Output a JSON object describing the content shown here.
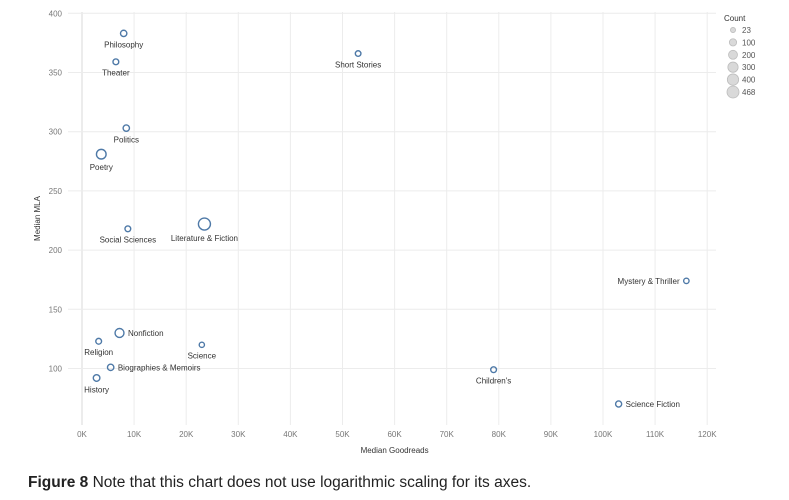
{
  "chart_data": {
    "type": "scatter",
    "title": "",
    "xlabel": "Median Goodreads",
    "ylabel": "Median MLA",
    "xlim": [
      0,
      120000
    ],
    "ylim": [
      50,
      400
    ],
    "x_ticks": [
      0,
      10000,
      20000,
      30000,
      40000,
      50000,
      60000,
      70000,
      80000,
      90000,
      100000,
      110000,
      120000
    ],
    "x_tick_labels": [
      "0K",
      "10K",
      "20K",
      "30K",
      "40K",
      "50K",
      "60K",
      "70K",
      "80K",
      "90K",
      "100K",
      "110K",
      "120K"
    ],
    "y_ticks": [
      100,
      150,
      200,
      250,
      300,
      350,
      400
    ],
    "y_tick_labels": [
      "100",
      "150",
      "200",
      "250",
      "300",
      "350",
      "400"
    ],
    "grid": true,
    "marker_color": "#4e79a7",
    "size_field": "Count",
    "points": [
      {
        "label": "Philosophy",
        "x": 8000,
        "y": 383,
        "count": 60,
        "label_pos": "below"
      },
      {
        "label": "Theater",
        "x": 6500,
        "y": 359,
        "count": 40,
        "label_pos": "below"
      },
      {
        "label": "Short Stories",
        "x": 53000,
        "y": 366,
        "count": 35,
        "label_pos": "below"
      },
      {
        "label": "Politics",
        "x": 8500,
        "y": 303,
        "count": 60,
        "label_pos": "below"
      },
      {
        "label": "Poetry",
        "x": 3700,
        "y": 281,
        "count": 250,
        "label_pos": "below"
      },
      {
        "label": "Social Sciences",
        "x": 8800,
        "y": 218,
        "count": 40,
        "label_pos": "below"
      },
      {
        "label": "Literature & Fiction",
        "x": 23500,
        "y": 222,
        "count": 468,
        "label_pos": "below"
      },
      {
        "label": "Mystery & Thriller",
        "x": 116000,
        "y": 174,
        "count": 30,
        "label_pos": "left"
      },
      {
        "label": "Nonfiction",
        "x": 7200,
        "y": 130,
        "count": 200,
        "label_pos": "right"
      },
      {
        "label": "Religion",
        "x": 3200,
        "y": 123,
        "count": 40,
        "label_pos": "below"
      },
      {
        "label": "Science",
        "x": 23000,
        "y": 120,
        "count": 25,
        "label_pos": "below"
      },
      {
        "label": "Biographies & Memoirs",
        "x": 5500,
        "y": 101,
        "count": 60,
        "label_pos": "right"
      },
      {
        "label": "Children's",
        "x": 79000,
        "y": 99,
        "count": 40,
        "label_pos": "below"
      },
      {
        "label": "History",
        "x": 2800,
        "y": 92,
        "count": 70,
        "label_pos": "below"
      },
      {
        "label": "Science Fiction",
        "x": 103000,
        "y": 70,
        "count": 50,
        "label_pos": "right"
      }
    ],
    "legend": {
      "title": "Count",
      "position": "top-right",
      "entries": [
        {
          "label": "23",
          "value": 23
        },
        {
          "label": "100",
          "value": 100
        },
        {
          "label": "200",
          "value": 200
        },
        {
          "label": "300",
          "value": 300
        },
        {
          "label": "400",
          "value": 400
        },
        {
          "label": "468",
          "value": 468
        }
      ]
    }
  },
  "caption": {
    "label": "Figure 8",
    "text": " Note that this chart does not use logarithmic scaling for its axes."
  }
}
